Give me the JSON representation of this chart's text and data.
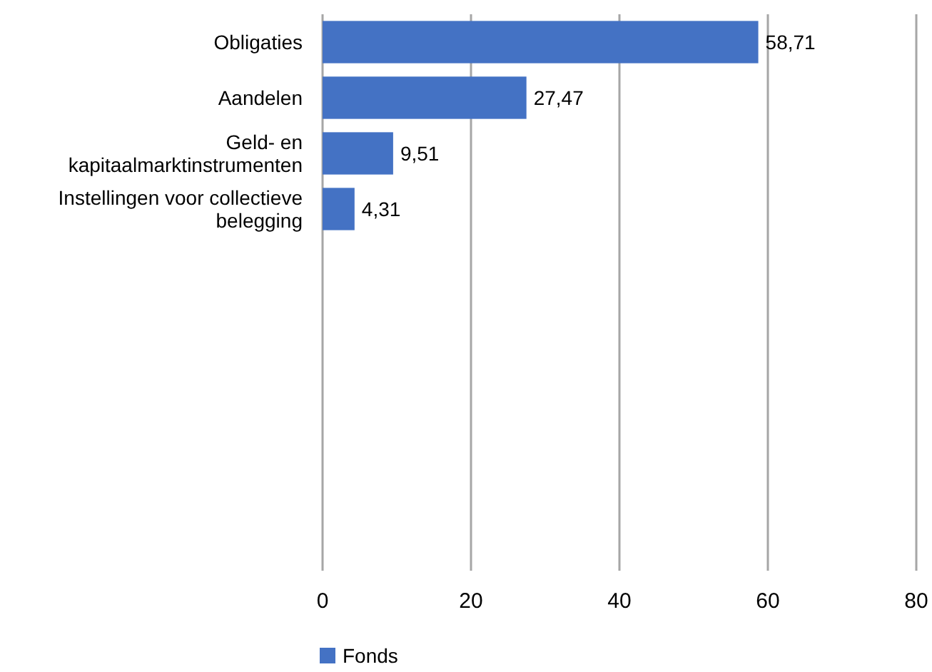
{
  "chart_data": {
    "type": "bar",
    "orientation": "horizontal",
    "categories": [
      "Obligaties",
      "Aandelen",
      "Geld- en kapitaalmarktinstrumenten",
      "Instellingen voor collectieve belegging",
      null,
      null,
      null,
      null,
      null,
      null
    ],
    "series": [
      {
        "name": "Fonds",
        "color": "#4472c4",
        "values": [
          58.71,
          27.47,
          9.51,
          4.31,
          null,
          null,
          null,
          null,
          null,
          null
        ],
        "value_labels": [
          "58,71",
          "27,47",
          "9,51",
          "4,31",
          null,
          null,
          null,
          null,
          null,
          null
        ]
      }
    ],
    "xlim": [
      0,
      80
    ],
    "xticks": [
      0,
      20,
      40,
      60,
      80
    ],
    "grid": "x",
    "legend": "bottom"
  }
}
